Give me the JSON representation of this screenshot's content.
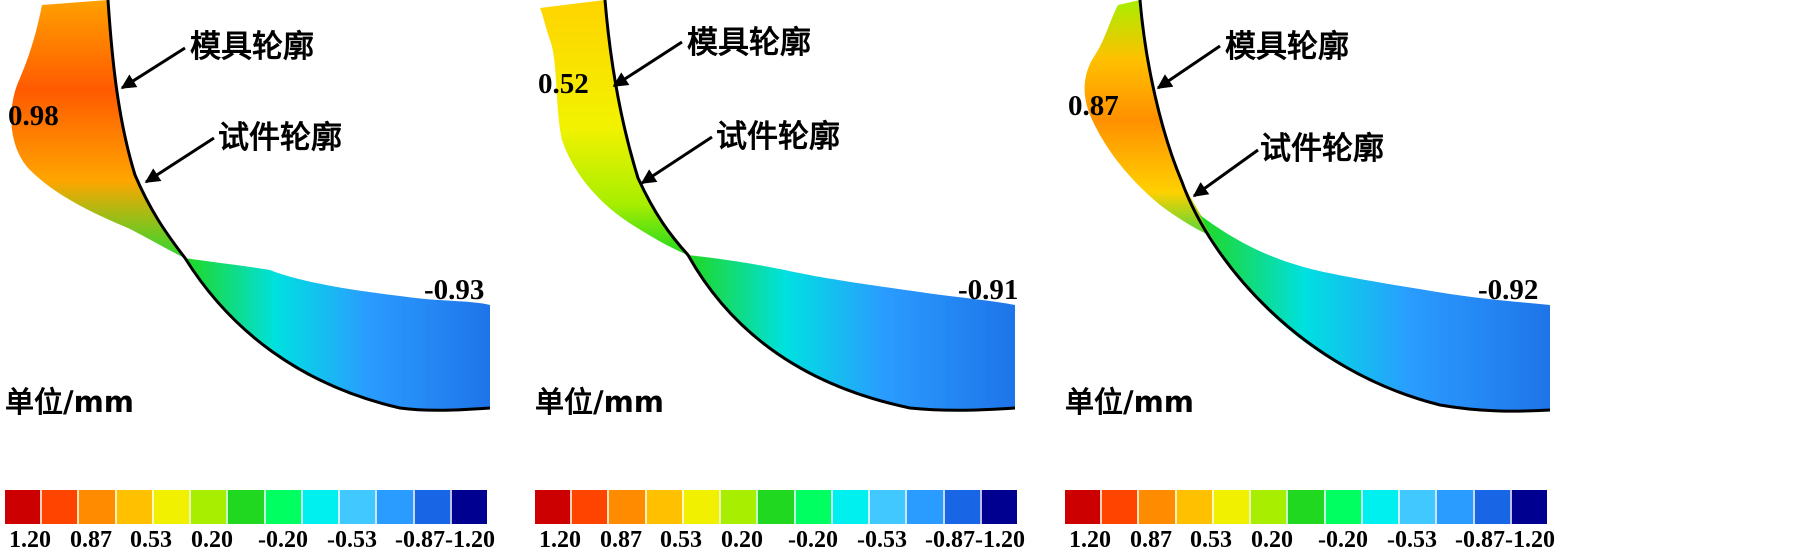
{
  "panels": [
    {
      "mold_label": "模具轮廓",
      "specimen_label": "试件轮廓",
      "max_value": "0.98",
      "min_value": "-0.93",
      "unit_label": "单位/mm"
    },
    {
      "mold_label": "模具轮廓",
      "specimen_label": "试件轮廓",
      "max_value": "0.52",
      "min_value": "-0.91",
      "unit_label": "单位/mm"
    },
    {
      "mold_label": "模具轮廓",
      "specimen_label": "试件轮廓",
      "max_value": "0.87",
      "min_value": "-0.92",
      "unit_label": "单位/mm"
    }
  ],
  "colorbar": {
    "tick_labels": [
      "1.20",
      "0.87",
      "0.53",
      "0.20",
      "-0.20",
      "-0.53",
      "-0.87",
      "-1.20"
    ],
    "colors": [
      "#cc0000",
      "#ff4400",
      "#ff8c00",
      "#ffc000",
      "#f0f000",
      "#a8ee00",
      "#20d820",
      "#00ff60",
      "#00f0f0",
      "#40c8ff",
      "#2a9cff",
      "#1866e6",
      "#000090"
    ]
  }
}
